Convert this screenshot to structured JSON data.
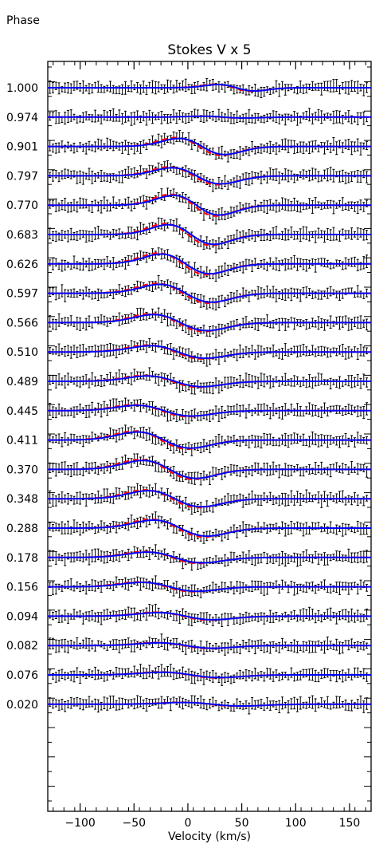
{
  "page": {
    "corner_label": "Phase"
  },
  "chart_data": {
    "type": "line",
    "title": "Stokes V x  5",
    "xlabel": "Velocity (km/s)",
    "ylabel": "",
    "xlim": [
      -130,
      170
    ],
    "x_ticks": [
      -100,
      -50,
      0,
      50,
      100,
      150
    ],
    "grid": false,
    "colors": {
      "observed": "#000000",
      "model_solid": "#0000ff",
      "model_dashed": "#ff0000"
    },
    "phases": [
      "1.000",
      "0.974",
      "0.901",
      "0.797",
      "0.770",
      "0.683",
      "0.626",
      "0.597",
      "0.566",
      "0.510",
      "0.489",
      "0.445",
      "0.411",
      "0.370",
      "0.348",
      "0.288",
      "0.178",
      "0.156",
      "0.094",
      "0.082",
      "0.076",
      "0.020"
    ],
    "series": [
      {
        "style": "error bars",
        "values": "observed Stokes V profiles, one per phase"
      },
      {
        "style": "solid",
        "values": "model fit, one per phase"
      },
      {
        "style": "dashed",
        "values": "model fit, one per phase"
      }
    ],
    "profile_shapes": [
      {
        "a": -0.18,
        "c": 42,
        "w": 24
      },
      {
        "a": -0.05,
        "c": 30,
        "w": 28
      },
      {
        "a": -0.45,
        "c": 10,
        "w": 30
      },
      {
        "a": -0.45,
        "c": 5,
        "w": 32
      },
      {
        "a": -0.55,
        "c": 5,
        "w": 30
      },
      {
        "a": -0.55,
        "c": 0,
        "w": 30
      },
      {
        "a": -0.55,
        "c": -5,
        "w": 32
      },
      {
        "a": -0.5,
        "c": -5,
        "w": 34
      },
      {
        "a": -0.45,
        "c": -10,
        "w": 35
      },
      {
        "a": -0.35,
        "c": -12,
        "w": 36
      },
      {
        "a": -0.3,
        "c": -15,
        "w": 36
      },
      {
        "a": -0.3,
        "c": -25,
        "w": 36
      },
      {
        "a": -0.45,
        "c": -25,
        "w": 35
      },
      {
        "a": -0.5,
        "c": -20,
        "w": 35
      },
      {
        "a": -0.45,
        "c": -15,
        "w": 35
      },
      {
        "a": -0.45,
        "c": -10,
        "w": 35
      },
      {
        "a": -0.3,
        "c": -15,
        "w": 36
      },
      {
        "a": -0.25,
        "c": -20,
        "w": 36
      },
      {
        "a": -0.2,
        "c": -5,
        "w": 36
      },
      {
        "a": -0.15,
        "c": -5,
        "w": 36
      },
      {
        "a": -0.15,
        "c": 0,
        "w": 38
      },
      {
        "a": -0.1,
        "c": 20,
        "w": 38
      }
    ]
  }
}
